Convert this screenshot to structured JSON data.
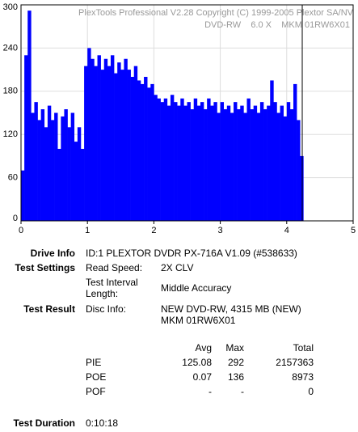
{
  "chart_data": {
    "type": "bar",
    "title": "PlexTools Professional V2.28 Copyright (C) 1999-2005 Plextor SA/NV",
    "subtitle": "DVD-RW    6.0 X    MKM 01RW6X01",
    "color": "#0000ff",
    "grid": true,
    "x": [
      0,
      0.05,
      0.1,
      0.15,
      0.2,
      0.25,
      0.3,
      0.35,
      0.4,
      0.45,
      0.5,
      0.55,
      0.6,
      0.65,
      0.7,
      0.75,
      0.8,
      0.85,
      0.9,
      0.95,
      1.0,
      1.05,
      1.1,
      1.15,
      1.2,
      1.25,
      1.3,
      1.35,
      1.4,
      1.45,
      1.5,
      1.55,
      1.6,
      1.65,
      1.7,
      1.75,
      1.8,
      1.85,
      1.9,
      1.95,
      2.0,
      2.05,
      2.1,
      2.15,
      2.2,
      2.25,
      2.3,
      2.35,
      2.4,
      2.45,
      2.5,
      2.55,
      2.6,
      2.65,
      2.7,
      2.75,
      2.8,
      2.85,
      2.9,
      2.95,
      3.0,
      3.05,
      3.1,
      3.15,
      3.2,
      3.25,
      3.3,
      3.35,
      3.4,
      3.45,
      3.5,
      3.55,
      3.6,
      3.65,
      3.7,
      3.75,
      3.8,
      3.85,
      3.9,
      3.95,
      4.0,
      4.05,
      4.1,
      4.15,
      4.2
    ],
    "values": [
      70,
      230,
      292,
      150,
      165,
      140,
      155,
      130,
      160,
      140,
      150,
      100,
      145,
      155,
      130,
      150,
      110,
      130,
      100,
      215,
      240,
      225,
      215,
      230,
      210,
      225,
      215,
      230,
      205,
      220,
      210,
      225,
      210,
      200,
      215,
      195,
      190,
      200,
      185,
      190,
      175,
      170,
      165,
      170,
      160,
      175,
      165,
      160,
      170,
      160,
      165,
      155,
      170,
      160,
      165,
      155,
      170,
      160,
      165,
      150,
      165,
      155,
      160,
      150,
      165,
      155,
      160,
      150,
      170,
      155,
      160,
      150,
      165,
      155,
      160,
      195,
      165,
      150,
      160,
      145,
      165,
      155,
      190,
      140,
      90
    ],
    "xlim": [
      0,
      5
    ],
    "xticks": [
      0,
      1,
      2,
      3,
      4,
      5
    ],
    "ylim": [
      0,
      300
    ],
    "yticks": [
      0,
      60,
      120,
      180,
      240,
      300
    ]
  },
  "report": {
    "drive_info": {
      "label": "Drive Info",
      "value": "ID:1 PLEXTOR DVDR PX-716A V1.09 (#538633)"
    },
    "test_settings": {
      "label": "Test Settings",
      "read_speed_label": "Read Speed:",
      "read_speed": "2X CLV",
      "interval_label": "Test Interval Length:",
      "interval": "Middle Accuracy"
    },
    "test_result": {
      "label": "Test Result",
      "disc_info_label": "Disc Info:",
      "disc_info": [
        "NEW DVD-RW, 4315 MB (NEW)",
        "MKM 01RW6X01"
      ]
    },
    "stats": {
      "columns": [
        "Avg",
        "Max",
        "Total"
      ],
      "rows": [
        [
          "PIE",
          125.08,
          292,
          2157363
        ],
        [
          "POE",
          0.07,
          136,
          8973
        ],
        [
          "POF",
          "-",
          "-",
          0
        ]
      ]
    },
    "test_duration": {
      "label": "Test Duration",
      "value": "0:10:18"
    }
  }
}
